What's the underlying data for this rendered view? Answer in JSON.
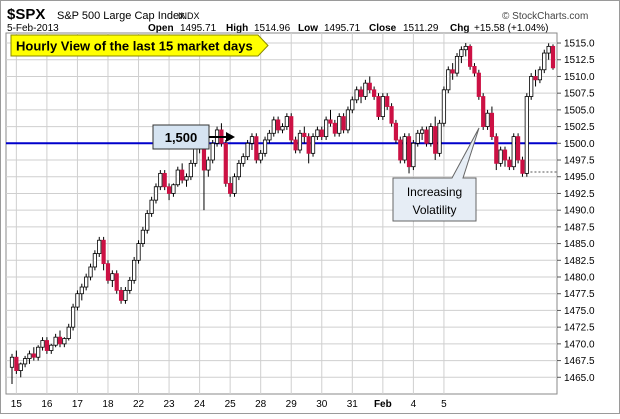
{
  "header": {
    "symbol": "$SPX",
    "name": "S&P 500 Large Cap Index",
    "exchange": "INDX",
    "date": "5-Feb-2013",
    "open_label": "Open",
    "open": "1495.71",
    "high_label": "High",
    "high": "1514.96",
    "low_label": "Low",
    "low": "1495.71",
    "close_label": "Close",
    "close": "1511.29",
    "chg_label": "Chg",
    "chg": "+15.58 (+1.04%)"
  },
  "watermark": "© StockCharts.com",
  "callouts": {
    "title": "Hourly View of the last 15 market days",
    "level": "1,500",
    "volatility_line1": "Increasing",
    "volatility_line2": "Volatility"
  },
  "colors": {
    "up_candle_fill": "#ffffff",
    "down_candle_fill": "#cc1144",
    "candle_outline": "#000000",
    "reference_line": "#0000cc",
    "title_box": "#ffff00",
    "level_box": "#d6e4f2",
    "volatility_box": "#e6edf5",
    "grid": "#cfcfcf"
  },
  "chart_data": {
    "type": "candlestick",
    "interval": "hourly",
    "ylim": [
      1462.5,
      1516.5
    ],
    "yticks": [
      "1465.0",
      "1467.5",
      "1470.0",
      "1472.5",
      "1475.0",
      "1477.5",
      "1480.0",
      "1482.5",
      "1485.0",
      "1487.5",
      "1490.0",
      "1492.5",
      "1495.0",
      "1497.5",
      "1500.0",
      "1502.5",
      "1505.0",
      "1507.5",
      "1510.0",
      "1512.5",
      "1515.0"
    ],
    "xticks": [
      "15",
      "16",
      "17",
      "18",
      "22",
      "23",
      "24",
      "25",
      "28",
      "29",
      "30",
      "31",
      "Feb",
      "4",
      "5"
    ],
    "reference_line": 1500.0,
    "last_close_level": 1495.7,
    "candles": [
      [
        1466.5,
        1468.5,
        1464.0,
        1468.0
      ],
      [
        1468.0,
        1469.0,
        1465.5,
        1466.0
      ],
      [
        1466.0,
        1467.2,
        1465.0,
        1467.0
      ],
      [
        1467.0,
        1468.2,
        1466.5,
        1467.8
      ],
      [
        1467.8,
        1469.0,
        1467.0,
        1468.5
      ],
      [
        1468.5,
        1469.5,
        1467.5,
        1468.0
      ],
      [
        1468.0,
        1469.8,
        1467.5,
        1469.5
      ],
      [
        1469.5,
        1471.0,
        1469.0,
        1470.5
      ],
      [
        1470.5,
        1471.0,
        1468.5,
        1469.0
      ],
      [
        1469.0,
        1470.0,
        1468.5,
        1469.8
      ],
      [
        1469.8,
        1471.5,
        1469.5,
        1471.0
      ],
      [
        1471.0,
        1472.0,
        1469.5,
        1470.0
      ],
      [
        1470.0,
        1471.0,
        1469.5,
        1470.8
      ],
      [
        1470.8,
        1473.0,
        1470.5,
        1472.5
      ],
      [
        1472.5,
        1476.0,
        1472.0,
        1475.5
      ],
      [
        1475.5,
        1478.0,
        1475.0,
        1477.5
      ],
      [
        1477.5,
        1479.0,
        1476.5,
        1478.5
      ],
      [
        1478.5,
        1480.5,
        1478.0,
        1480.0
      ],
      [
        1480.0,
        1482.0,
        1479.5,
        1481.5
      ],
      [
        1481.5,
        1484.0,
        1481.0,
        1483.5
      ],
      [
        1483.5,
        1486.0,
        1483.0,
        1485.5
      ],
      [
        1485.5,
        1486.0,
        1481.0,
        1482.0
      ],
      [
        1482.0,
        1482.5,
        1479.0,
        1479.5
      ],
      [
        1479.5,
        1481.0,
        1478.5,
        1480.5
      ],
      [
        1480.5,
        1481.0,
        1477.5,
        1478.0
      ],
      [
        1478.0,
        1478.5,
        1476.0,
        1476.5
      ],
      [
        1476.5,
        1478.5,
        1476.0,
        1478.0
      ],
      [
        1478.0,
        1480.0,
        1477.5,
        1479.5
      ],
      [
        1479.5,
        1483.0,
        1479.0,
        1482.5
      ],
      [
        1482.5,
        1485.5,
        1482.0,
        1485.0
      ],
      [
        1485.0,
        1487.5,
        1484.5,
        1487.0
      ],
      [
        1487.0,
        1490.0,
        1486.5,
        1489.5
      ],
      [
        1489.5,
        1492.0,
        1489.0,
        1491.5
      ],
      [
        1491.5,
        1494.0,
        1491.0,
        1493.5
      ],
      [
        1493.5,
        1496.0,
        1493.0,
        1495.5
      ],
      [
        1495.5,
        1496.0,
        1493.0,
        1493.5
      ],
      [
        1493.5,
        1494.0,
        1491.5,
        1492.5
      ],
      [
        1492.5,
        1494.0,
        1492.0,
        1493.8
      ],
      [
        1493.8,
        1496.5,
        1493.5,
        1496.0
      ],
      [
        1496.0,
        1497.0,
        1494.0,
        1494.5
      ],
      [
        1494.5,
        1495.5,
        1493.5,
        1495.0
      ],
      [
        1495.0,
        1497.5,
        1494.5,
        1497.0
      ],
      [
        1497.0,
        1500.0,
        1496.5,
        1499.5
      ],
      [
        1499.5,
        1501.5,
        1498.5,
        1501.0
      ],
      [
        1501.0,
        1502.0,
        1490.0,
        1496.0
      ],
      [
        1496.0,
        1498.0,
        1495.0,
        1497.5
      ],
      [
        1497.5,
        1500.5,
        1497.0,
        1500.0
      ],
      [
        1500.0,
        1502.5,
        1499.5,
        1502.0
      ],
      [
        1502.0,
        1503.0,
        1499.5,
        1500.0
      ],
      [
        1500.0,
        1500.5,
        1493.5,
        1494.0
      ],
      [
        1494.0,
        1495.0,
        1492.0,
        1492.5
      ],
      [
        1492.5,
        1495.5,
        1492.0,
        1495.0
      ],
      [
        1495.0,
        1497.5,
        1494.5,
        1497.0
      ],
      [
        1497.0,
        1498.5,
        1496.5,
        1498.0
      ],
      [
        1498.0,
        1500.5,
        1497.5,
        1500.0
      ],
      [
        1500.0,
        1501.5,
        1499.0,
        1501.0
      ],
      [
        1501.0,
        1501.5,
        1497.0,
        1497.5
      ],
      [
        1497.5,
        1499.0,
        1497.0,
        1498.5
      ],
      [
        1498.5,
        1501.0,
        1498.0,
        1500.5
      ],
      [
        1500.5,
        1502.0,
        1500.0,
        1501.5
      ],
      [
        1501.5,
        1504.0,
        1501.0,
        1503.5
      ],
      [
        1503.5,
        1504.0,
        1501.5,
        1502.0
      ],
      [
        1502.0,
        1503.0,
        1501.5,
        1502.5
      ],
      [
        1502.5,
        1504.5,
        1502.0,
        1504.0
      ],
      [
        1504.0,
        1504.5,
        1500.0,
        1500.5
      ],
      [
        1500.5,
        1501.0,
        1498.5,
        1499.0
      ],
      [
        1499.0,
        1502.0,
        1498.5,
        1501.5
      ],
      [
        1501.5,
        1502.5,
        1500.0,
        1501.0
      ],
      [
        1501.0,
        1501.5,
        1497.0,
        1498.5
      ],
      [
        1498.5,
        1501.5,
        1498.0,
        1501.0
      ],
      [
        1501.0,
        1502.5,
        1500.5,
        1502.0
      ],
      [
        1502.0,
        1502.5,
        1500.5,
        1501.0
      ],
      [
        1501.0,
        1504.0,
        1500.5,
        1503.5
      ],
      [
        1503.5,
        1505.0,
        1502.5,
        1503.0
      ],
      [
        1503.0,
        1503.5,
        1501.0,
        1501.5
      ],
      [
        1501.5,
        1504.5,
        1501.0,
        1504.0
      ],
      [
        1504.0,
        1504.5,
        1501.5,
        1502.0
      ],
      [
        1502.0,
        1505.5,
        1501.5,
        1505.0
      ],
      [
        1505.0,
        1507.0,
        1504.5,
        1506.5
      ],
      [
        1506.5,
        1508.5,
        1506.0,
        1508.0
      ],
      [
        1508.0,
        1508.5,
        1506.0,
        1507.0
      ],
      [
        1507.0,
        1509.5,
        1506.5,
        1509.0
      ],
      [
        1509.0,
        1510.0,
        1507.5,
        1508.0
      ],
      [
        1508.0,
        1508.5,
        1506.5,
        1507.0
      ],
      [
        1507.0,
        1507.5,
        1503.5,
        1504.0
      ],
      [
        1504.0,
        1507.5,
        1503.5,
        1507.0
      ],
      [
        1507.0,
        1507.5,
        1505.0,
        1505.5
      ],
      [
        1505.5,
        1506.0,
        1502.5,
        1503.0
      ],
      [
        1503.0,
        1503.5,
        1500.0,
        1500.5
      ],
      [
        1500.5,
        1501.0,
        1497.0,
        1497.5
      ],
      [
        1497.5,
        1501.5,
        1497.0,
        1501.0
      ],
      [
        1501.0,
        1501.5,
        1495.5,
        1496.5
      ],
      [
        1496.5,
        1500.5,
        1496.0,
        1500.0
      ],
      [
        1500.0,
        1502.0,
        1499.5,
        1501.5
      ],
      [
        1501.5,
        1502.5,
        1500.5,
        1502.0
      ],
      [
        1502.0,
        1502.5,
        1499.5,
        1500.0
      ],
      [
        1500.0,
        1503.0,
        1499.5,
        1502.5
      ],
      [
        1502.5,
        1504.0,
        1497.5,
        1498.5
      ],
      [
        1498.5,
        1503.5,
        1498.0,
        1503.0
      ],
      [
        1503.0,
        1508.5,
        1502.5,
        1508.0
      ],
      [
        1508.0,
        1511.5,
        1507.5,
        1511.0
      ],
      [
        1511.0,
        1512.0,
        1509.5,
        1510.5
      ],
      [
        1510.5,
        1513.5,
        1510.0,
        1513.0
      ],
      [
        1513.0,
        1514.5,
        1512.0,
        1514.0
      ],
      [
        1514.0,
        1515.0,
        1513.0,
        1514.5
      ],
      [
        1514.5,
        1514.8,
        1511.0,
        1511.5
      ],
      [
        1511.5,
        1512.0,
        1510.0,
        1510.5
      ],
      [
        1510.5,
        1511.0,
        1506.5,
        1507.0
      ],
      [
        1507.0,
        1507.5,
        1502.0,
        1502.5
      ],
      [
        1502.5,
        1505.0,
        1502.0,
        1504.5
      ],
      [
        1504.5,
        1505.5,
        1500.5,
        1501.0
      ],
      [
        1501.0,
        1501.5,
        1496.0,
        1497.0
      ],
      [
        1497.0,
        1499.5,
        1496.5,
        1499.0
      ],
      [
        1499.0,
        1499.5,
        1496.5,
        1497.5
      ],
      [
        1497.5,
        1498.0,
        1496.0,
        1496.5
      ],
      [
        1496.5,
        1501.5,
        1496.0,
        1501.0
      ],
      [
        1501.0,
        1501.5,
        1497.0,
        1497.5
      ],
      [
        1497.5,
        1498.0,
        1495.0,
        1495.5
      ],
      [
        1495.5,
        1507.5,
        1495.0,
        1507.0
      ],
      [
        1507.0,
        1510.5,
        1506.5,
        1510.0
      ],
      [
        1510.0,
        1511.0,
        1508.5,
        1509.5
      ],
      [
        1509.5,
        1511.5,
        1509.0,
        1511.0
      ],
      [
        1511.0,
        1514.0,
        1510.5,
        1513.5
      ],
      [
        1513.5,
        1514.96,
        1512.5,
        1514.5
      ],
      [
        1514.5,
        1514.8,
        1511.0,
        1511.29
      ]
    ]
  }
}
